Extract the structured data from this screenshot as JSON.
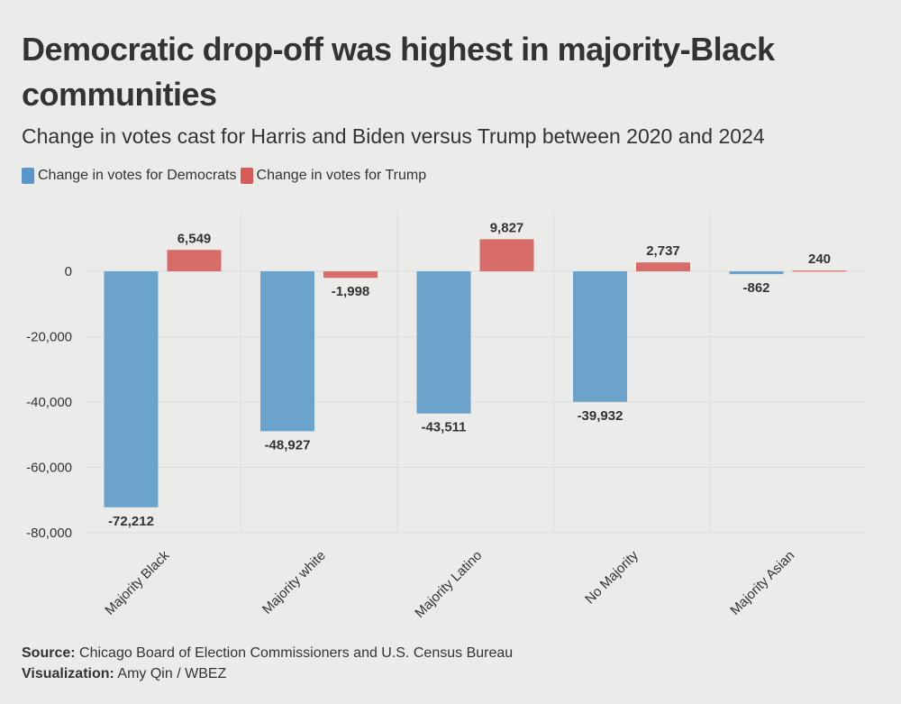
{
  "title": "Democratic drop-off was highest in majority-Black communities",
  "subtitle": "Change in votes cast for Harris and Biden versus Trump between 2020 and 2024",
  "legend": {
    "dem": "Change in votes for Democrats",
    "trump": "Change in votes for Trump"
  },
  "colors": {
    "dem": "#6ba3cd",
    "trump": "#d76c68",
    "dem_swatch": "#5a96c9",
    "trump_swatch": "#d65b57",
    "grid": "#dcdcdb",
    "text": "#333333",
    "background": "#ebebea"
  },
  "footer": {
    "source_label": "Source:",
    "source_text": "Chicago Board of Election Commissioners and U.S. Census Bureau",
    "viz_label": "Visualization:",
    "viz_text": "Amy Qin / WBEZ"
  },
  "chart_data": {
    "type": "bar",
    "categories": [
      "Majority Black",
      "Majority white",
      "Majority Latino",
      "No Majority",
      "Majority Asian"
    ],
    "series": [
      {
        "name": "Change in votes for Democrats",
        "values": [
          -72212,
          -48927,
          -43511,
          -39932,
          -862
        ]
      },
      {
        "name": "Change in votes for Trump",
        "values": [
          6549,
          -1998,
          9827,
          2737,
          240
        ]
      }
    ],
    "data_labels": [
      [
        "-72,212",
        "-48,927",
        "-43,511",
        "-39,932",
        "-862"
      ],
      [
        "6,549",
        "-1,998",
        "9,827",
        "2,737",
        "240"
      ]
    ],
    "yticks": [
      0,
      -20000,
      -40000,
      -60000,
      -80000
    ],
    "ytick_labels": [
      "0",
      "-20,000",
      "-40,000",
      "-60,000",
      "-80,000"
    ],
    "ylim": [
      -80000,
      18000
    ],
    "grid": true,
    "legend_position": "top-left",
    "xlabel": "",
    "ylabel": ""
  }
}
